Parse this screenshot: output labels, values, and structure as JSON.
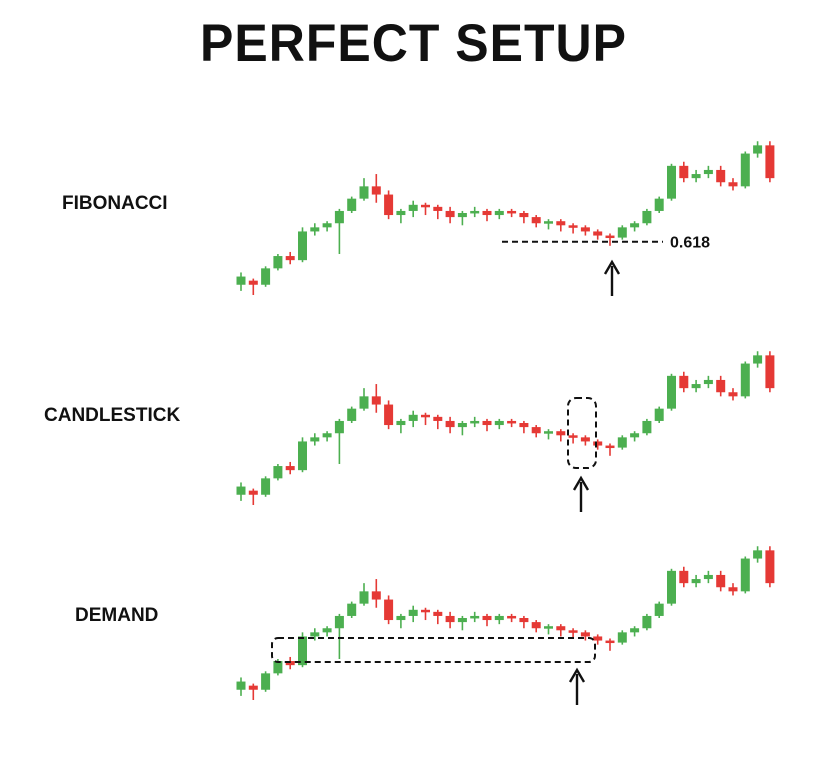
{
  "title": "PERFECT SETUP",
  "colors": {
    "up": "#4caf50",
    "down": "#e53935",
    "text": "#111111"
  },
  "chart_data": [
    {
      "type": "candlestick",
      "panel": "FIBONACCI",
      "level_label": "0.618",
      "annotation": "dashed horizontal line at retracement level with arrow pointing up",
      "candles": []
    },
    {
      "type": "candlestick",
      "panel": "CANDLESTICK",
      "annotation": "dashed box around reversal candles with arrow pointing up",
      "candles": []
    },
    {
      "type": "candlestick",
      "panel": "DEMAND",
      "annotation": "dashed demand zone rectangle with arrow pointing up",
      "candles": []
    }
  ]
}
